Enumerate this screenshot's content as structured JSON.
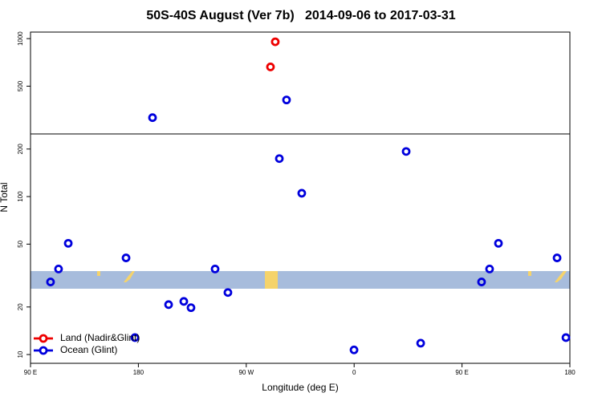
{
  "chart_data": {
    "type": "scatter",
    "title": "50S-40S August (Ver 7b)   2014-09-06 to 2017-03-31",
    "xlabel": "Longitude (deg E)",
    "ylabel": "N Total",
    "xlim": [
      90,
      540
    ],
    "xticks": [
      {
        "value": 90,
        "label": "90 E"
      },
      180,
      {
        "value": 270,
        "label": "90 W"
      },
      {
        "value": 360,
        "label": "0"
      },
      {
        "value": 450,
        "label": "90 E"
      },
      {
        "value": 540,
        "label": "180"
      }
    ],
    "ylim": [
      8.8,
      1100
    ],
    "log_y": true,
    "yticks": [
      10,
      20,
      50,
      100,
      200,
      500,
      1000
    ],
    "legend": "lower left",
    "series": [
      {
        "name": "Land (Nadir&Glint)",
        "color": "#ee0000",
        "x": [
          294.2,
          290.2
        ],
        "values": [
          955,
          662
        ]
      },
      {
        "name": "Ocean (Glint)",
        "color": "#0000dd",
        "x": [
          303.6,
          191.8,
          106.7,
          113.4,
          121.5,
          169.7,
          177.1,
          205.2,
          217.9,
          223.9,
          244.0,
          254.7,
          297.6,
          316.3,
          359.9,
          403.4,
          415.5,
          466.3,
          473.0,
          480.4,
          529.3,
          536.7
        ],
        "values": [
          409,
          316,
          28.8,
          34.8,
          50.6,
          40.9,
          12.8,
          20.7,
          21.7,
          19.8,
          34.8,
          24.7,
          174,
          105,
          10.7,
          193,
          11.8,
          28.8,
          34.8,
          50.6,
          40.9,
          12.8
        ]
      }
    ]
  }
}
